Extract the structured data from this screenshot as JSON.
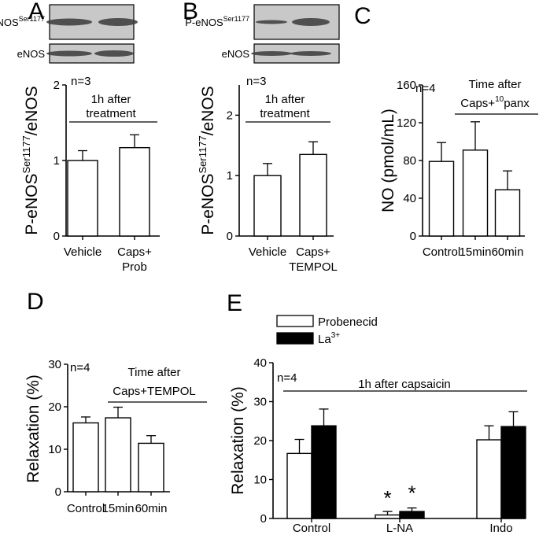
{
  "colors": {
    "ink": "#000000",
    "open_bar": "#ffffff",
    "filled_bar": "#000000",
    "blot_bg": "#c8c8c8",
    "blot_band": "#3a3a3a"
  },
  "blots": {
    "A": {
      "labels": [
        "P-eNOS",
        "eNOS"
      ],
      "label_sup": [
        "Ser1177",
        ""
      ]
    },
    "B": {
      "labels": [
        "P-eNOS",
        "eNOS"
      ],
      "label_sup": [
        "Ser1177",
        ""
      ]
    }
  },
  "chart_data": [
    {
      "panel": "A",
      "type": "bar",
      "categories": [
        "Vehicle",
        "Caps+|Prob"
      ],
      "values": [
        1.0,
        1.17
      ],
      "errors": [
        0.13,
        0.17
      ],
      "ylabel": "P-eNOS",
      "ylabel_sup": "Ser1177",
      "ylabel_tail": "/eNOS",
      "ylim": [
        0,
        2
      ],
      "yticks": [
        0,
        1,
        2
      ],
      "n_label": "n=3",
      "annotation": [
        "1h after",
        "treatment"
      ]
    },
    {
      "panel": "B",
      "type": "bar",
      "categories": [
        "Vehicle",
        "Caps+|TEMPOL"
      ],
      "values": [
        1.0,
        1.35
      ],
      "errors": [
        0.2,
        0.21
      ],
      "ylabel": "P-eNOS",
      "ylabel_sup": "Ser1177",
      "ylabel_tail": "/eNOS",
      "ylim": [
        0,
        2.5
      ],
      "yticks": [
        0,
        1,
        2
      ],
      "n_label": "n=3",
      "annotation": [
        "1h after",
        "treatment"
      ]
    },
    {
      "panel": "C",
      "type": "bar",
      "categories": [
        "Control",
        "15min",
        "60min"
      ],
      "values": [
        79,
        91,
        49
      ],
      "errors": [
        20,
        30,
        20
      ],
      "ylabel": "NO (pmol/mL)",
      "ylim": [
        0,
        160
      ],
      "yticks": [
        0,
        40,
        80,
        120,
        160
      ],
      "n_label": "n=4",
      "annotation": [
        "Time after",
        "Caps+",
        "10",
        "panx"
      ]
    },
    {
      "panel": "D",
      "type": "bar",
      "categories": [
        "Control",
        "15min",
        "60min"
      ],
      "values": [
        16.2,
        17.4,
        11.4
      ],
      "errors": [
        1.4,
        2.5,
        1.8
      ],
      "ylabel": "Relaxation (%)",
      "ylim": [
        0,
        30
      ],
      "yticks": [
        0,
        10,
        20,
        30
      ],
      "n_label": "n=4",
      "annotation": [
        "Time after",
        "Caps+TEMPOL"
      ]
    },
    {
      "panel": "E",
      "type": "bar",
      "categories": [
        "Control",
        "L-NA",
        "Indo"
      ],
      "series": [
        {
          "name": "Probenecid",
          "values": [
            16.7,
            0.9,
            20.2
          ],
          "errors": [
            3.6,
            0.9,
            3.6
          ]
        },
        {
          "name": "La",
          "name_sup": "3+",
          "values": [
            23.8,
            1.8,
            23.6
          ],
          "errors": [
            4.3,
            0.9,
            3.8
          ]
        }
      ],
      "significance": [
        "",
        "*",
        ""
      ],
      "ylabel": "Relaxation (%)",
      "ylim": [
        0,
        40
      ],
      "yticks": [
        0,
        10,
        20,
        30,
        40
      ],
      "n_label": "n=4",
      "annotation": [
        "1h after capsaicin"
      ]
    }
  ]
}
